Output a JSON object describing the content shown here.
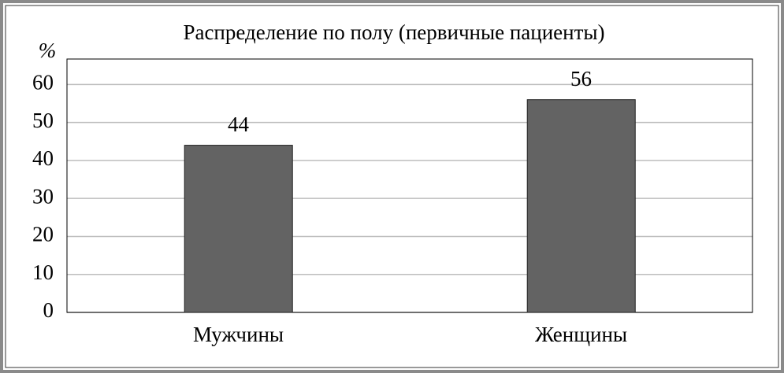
{
  "chart_data": {
    "type": "bar",
    "title": "Распределение по полу (первичные пациенты)",
    "y_label": "%",
    "categories": [
      "Мужчины",
      "Женщины"
    ],
    "values": [
      44,
      56
    ],
    "color": "#636363",
    "ylim": [
      0,
      66.7
    ],
    "yticks": [
      0,
      10,
      20,
      30,
      40,
      50,
      60
    ],
    "grid": true
  }
}
